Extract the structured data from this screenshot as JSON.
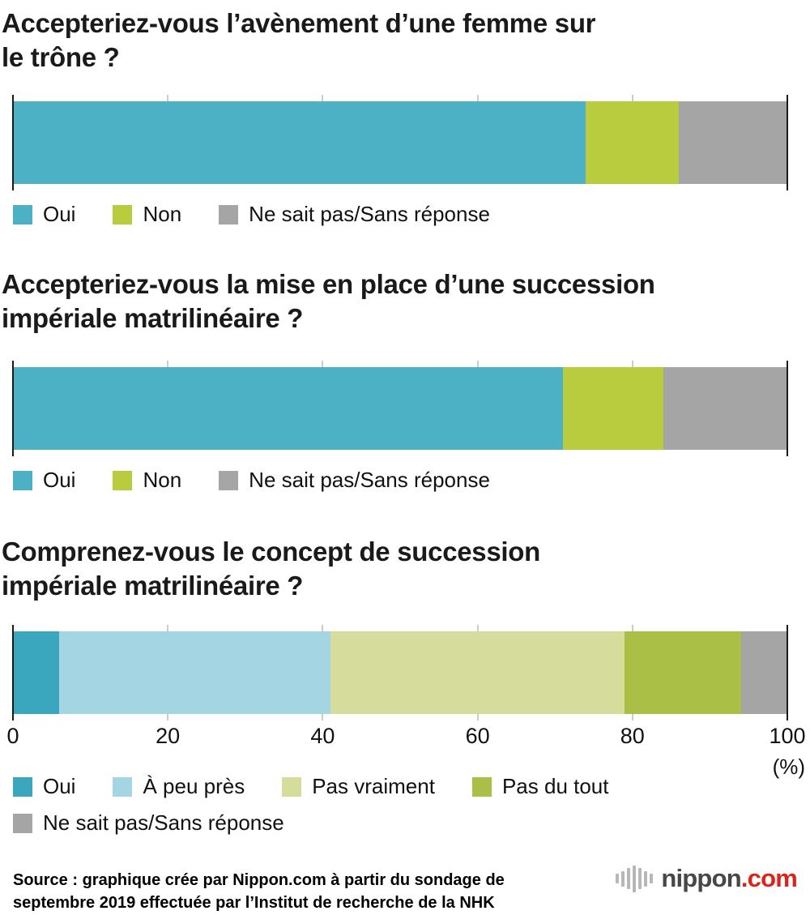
{
  "chart_data": [
    {
      "type": "bar",
      "orientation": "horizontal-stacked",
      "title": "Accepteriez-vous l’avènement d’une femme sur le trône ?",
      "title_lines": [
        "Accepteriez-vous l’avènement d’une femme sur",
        "le trône ?"
      ],
      "xlim": [
        0,
        100
      ],
      "unit": "%",
      "gridlines": [
        20,
        40,
        60,
        80
      ],
      "legend_position": "below",
      "segments": [
        {
          "label": "Oui",
          "value": 74,
          "color": "#4db1c5"
        },
        {
          "label": "Non",
          "value": 12,
          "color": "#b9cc3d"
        },
        {
          "label": "Ne sait pas/Sans réponse",
          "value": 14,
          "color": "#a5a5a5"
        }
      ]
    },
    {
      "type": "bar",
      "orientation": "horizontal-stacked",
      "title": "Accepteriez-vous la mise en place d’une succession impériale matrilinéaire ?",
      "title_lines": [
        "Accepteriez-vous la mise en place d’une succession",
        "impériale matrilinéaire ?"
      ],
      "xlim": [
        0,
        100
      ],
      "unit": "%",
      "gridlines": [
        20,
        40,
        60,
        80
      ],
      "legend_position": "below",
      "segments": [
        {
          "label": "Oui",
          "value": 71,
          "color": "#4db1c5"
        },
        {
          "label": "Non",
          "value": 13,
          "color": "#b9cc3d"
        },
        {
          "label": "Ne sait pas/Sans réponse",
          "value": 16,
          "color": "#a5a5a5"
        }
      ]
    },
    {
      "type": "bar",
      "orientation": "horizontal-stacked",
      "title": "Comprenez-vous le concept de succession impériale matrilinéaire ?",
      "title_lines": [
        "Comprenez-vous le concept de succession",
        "impériale matrilinéaire ?"
      ],
      "xlim": [
        0,
        100
      ],
      "unit": "%",
      "gridlines": [
        20,
        40,
        60,
        80
      ],
      "x_ticks": [
        0,
        20,
        40,
        60,
        80,
        100
      ],
      "axis_unit": "(%)",
      "legend_position": "below",
      "segments": [
        {
          "label": "Oui",
          "value": 6,
          "color": "#3aa7bf"
        },
        {
          "label": "À peu près",
          "value": 35,
          "color": "#a3d6e2"
        },
        {
          "label": "Pas vraiment",
          "value": 38,
          "color": "#d6dd9c"
        },
        {
          "label": "Pas du tout",
          "value": 15,
          "color": "#a9bf45"
        },
        {
          "label": "Ne sait pas/Sans réponse",
          "value": 6,
          "color": "#a5a5a5"
        }
      ]
    }
  ],
  "source": {
    "text": "Source : graphique crée par Nippon.com à partir du sondage de septembre 2019 effectuée par l’Institut de recherche de la NHK"
  },
  "logo": {
    "brand": "nippon",
    "suffix": ".com",
    "icon": "nippon-bars-icon"
  }
}
